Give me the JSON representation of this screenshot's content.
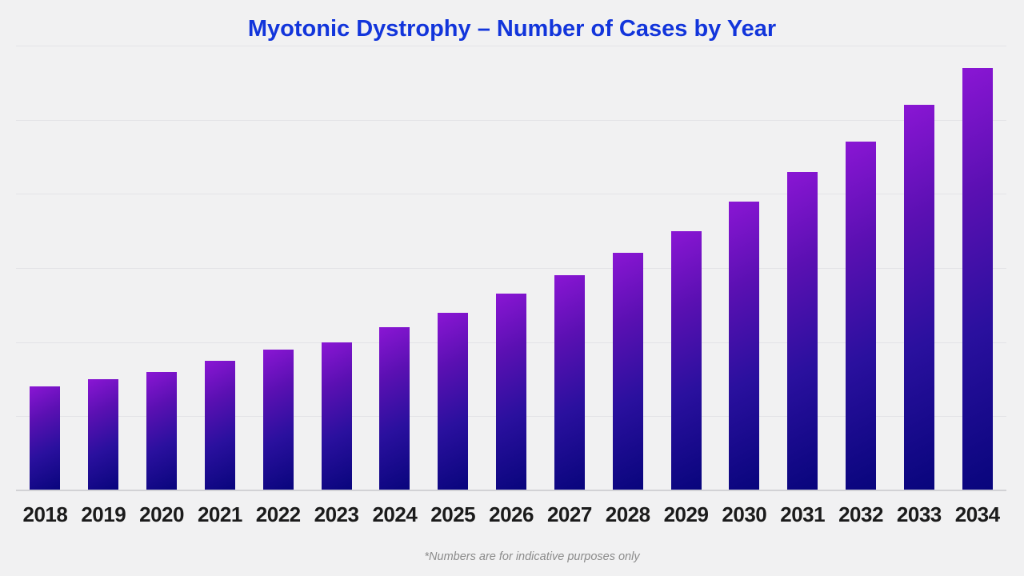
{
  "chart_data": {
    "type": "bar",
    "title": "Myotonic Dystrophy – Number of Cases by Year",
    "categories": [
      "2018",
      "2019",
      "2020",
      "2021",
      "2022",
      "2023",
      "2024",
      "2025",
      "2026",
      "2027",
      "2028",
      "2029",
      "2030",
      "2031",
      "2032",
      "2033",
      "2034"
    ],
    "values": [
      140,
      150,
      160,
      175,
      190,
      200,
      220,
      240,
      265,
      290,
      320,
      350,
      390,
      430,
      470,
      520,
      570
    ],
    "xlabel": "",
    "ylabel": "",
    "ylim": [
      0,
      600
    ],
    "gridline_step": 100,
    "grid": "horizontal",
    "y_tick_labels_shown": false,
    "legend": "none",
    "footnote": "*Numbers are for indicative purposes only"
  },
  "colors": {
    "background": "#f1f1f2",
    "title_text": "#1235db",
    "gridline": "#e3e3e6",
    "axis_line": "#d2d2d5",
    "x_label_text": "#1b1b1b",
    "footnote_text": "#8b8b8b",
    "bar_gradient": [
      "#8a16d4",
      "#5a10b2",
      "#2a109e",
      "#08057c"
    ]
  }
}
